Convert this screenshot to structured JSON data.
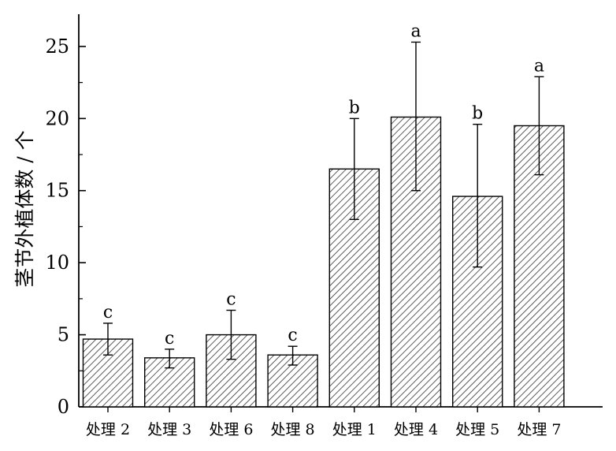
{
  "chart_data": {
    "type": "bar",
    "title": "",
    "xlabel": "",
    "ylabel": "茎节外植体数 / 个",
    "ylim": [
      0,
      27
    ],
    "yticks": [
      0,
      5,
      10,
      15,
      20,
      25
    ],
    "grid": false,
    "bar_fill": "diagonal-hatch",
    "colors": {
      "bar_hatch": "#333333",
      "bar_fill": "#ffffff",
      "axis": "#000000"
    },
    "categories": [
      "处理 2",
      "处理 3",
      "处理 6",
      "处理 8",
      "处理 1",
      "处理 4",
      "处理 5",
      "处理 7"
    ],
    "values": [
      4.7,
      3.4,
      5.0,
      3.6,
      16.5,
      20.1,
      14.6,
      19.5
    ],
    "error_upper": [
      5.8,
      4.0,
      6.7,
      4.2,
      20.0,
      25.3,
      19.6,
      22.9
    ],
    "error_lower": [
      3.6,
      2.7,
      3.3,
      2.9,
      13.0,
      15.0,
      9.7,
      16.1
    ],
    "significance": [
      "c",
      "c",
      "c",
      "c",
      "b",
      "a",
      "b",
      "a"
    ]
  }
}
